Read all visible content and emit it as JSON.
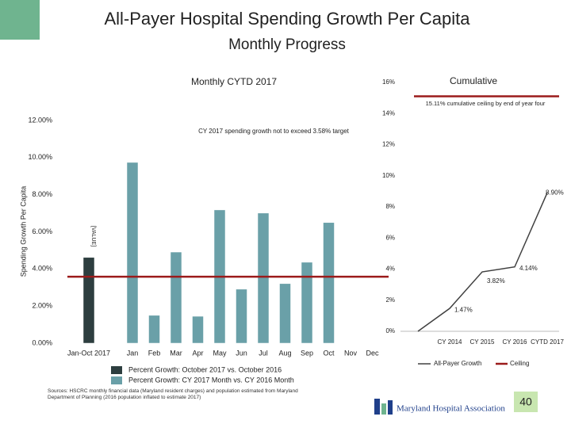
{
  "header": {
    "title": "All-Payer Hospital Spending Growth Per Capita",
    "subtitle": "Monthly Progress"
  },
  "chart_data": [
    {
      "type": "bar",
      "title": "Monthly CYTD 2017",
      "y_label": "Spending Growth Per Capita",
      "categories": [
        "Jan-Oct 2017",
        "Jan",
        "Feb",
        "Mar",
        "Apr",
        "May",
        "Jun",
        "Jul",
        "Aug",
        "Sep",
        "Oct",
        "Nov",
        "Dec"
      ],
      "series": [
        {
          "name": "Percent Growth: October 2017 vs. October 2016",
          "color": "#2d3e3f",
          "values": [
            4.62,
            null,
            null,
            null,
            null,
            null,
            null,
            null,
            null,
            null,
            null,
            null,
            null
          ]
        },
        {
          "name": "Percent Growth: CY 2017 Month vs. CY 2016 Month",
          "color": "#6aa0a8",
          "values": [
            null,
            9.74,
            1.5,
            4.91,
            1.45,
            7.18,
            2.91,
            7.01,
            3.21,
            4.36,
            6.5,
            null,
            null
          ]
        }
      ],
      "annotation": "[VALUE]",
      "target": 3.58,
      "target_color": "#9b1b1b",
      "target_label": "CY 2017 spending growth not to exceed 3.58% target",
      "ylim": [
        0,
        12
      ],
      "yticks": [
        {
          "value": 0,
          "label": "0.00%"
        },
        {
          "value": 2,
          "label": "2.00%"
        },
        {
          "value": 4,
          "label": "4.00%"
        },
        {
          "value": 6,
          "label": "6.00%"
        },
        {
          "value": 8,
          "label": "8.00%"
        },
        {
          "value": 10,
          "label": "10.00%"
        },
        {
          "value": 12,
          "label": "12.00%"
        }
      ]
    },
    {
      "type": "line",
      "title": "Cumulative",
      "categories": [
        null,
        "CY 2014",
        "CY 2015",
        "CY 2016",
        "CYTD 2017"
      ],
      "series": [
        {
          "name": "All-Payer Growth",
          "color": "#404040",
          "values": [
            0,
            1.47,
            3.82,
            4.14,
            8.9
          ],
          "value_labels": [
            null,
            "1.47%",
            "3.82%",
            "4.14%",
            "8.90%"
          ]
        }
      ],
      "ceiling": 15.11,
      "ceiling_name": "Ceiling",
      "ceiling_color": "#9b1b1b",
      "ceiling_label": "15.11% cumulative ceiling by end of year four",
      "ylim": [
        0,
        16
      ],
      "yticks": [
        {
          "value": 0,
          "label": "0%"
        },
        {
          "value": 2,
          "label": "2%"
        },
        {
          "value": 4,
          "label": "4%"
        },
        {
          "value": 6,
          "label": "6%"
        },
        {
          "value": 8,
          "label": "8%"
        },
        {
          "value": 10,
          "label": "10%"
        },
        {
          "value": 12,
          "label": "12%"
        },
        {
          "value": 14,
          "label": "14%"
        },
        {
          "value": 16,
          "label": "16%"
        }
      ]
    }
  ],
  "footer": {
    "source": "Sources: HSCRC monthly financial data (Maryland resident charges) and population estimated from Maryland Department of Planning (2016 population inflated to estimate 2017)",
    "logo_text": "Maryland Hospital Association",
    "page_number": "40"
  }
}
